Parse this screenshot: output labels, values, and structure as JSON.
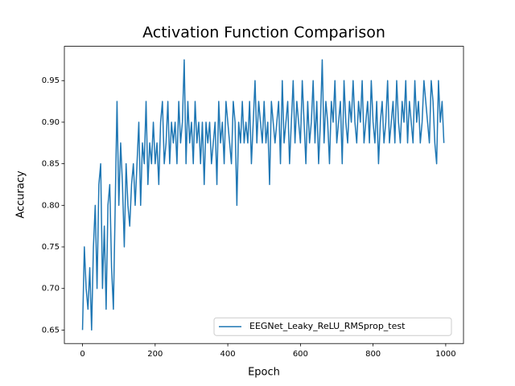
{
  "chart_data": {
    "type": "line",
    "title": "Activation Function Comparison",
    "xlabel": "Epoch",
    "ylabel": "Accuracy",
    "legend": "lower right",
    "xlim": [
      -49.95,
      1048.95
    ],
    "ylim": [
      0.63375,
      0.99125
    ],
    "xticks": [
      0,
      200,
      400,
      600,
      800,
      1000
    ],
    "yticks": [
      0.65,
      {
        "value": 0.7,
        "label": "0.70"
      },
      0.75,
      {
        "value": 0.8,
        "label": "0.80"
      },
      0.85,
      {
        "value": 0.9,
        "label": "0.90"
      },
      0.95
    ],
    "x": [
      0,
      5,
      10,
      15,
      20,
      25,
      30,
      35,
      40,
      45,
      50,
      55,
      60,
      65,
      70,
      75,
      80,
      85,
      90,
      95,
      100,
      105,
      110,
      115,
      120,
      125,
      130,
      135,
      140,
      145,
      150,
      155,
      160,
      165,
      170,
      175,
      180,
      185,
      190,
      195,
      200,
      205,
      210,
      215,
      220,
      225,
      230,
      235,
      240,
      245,
      250,
      255,
      260,
      265,
      270,
      275,
      280,
      285,
      290,
      295,
      300,
      305,
      310,
      315,
      320,
      325,
      330,
      335,
      340,
      345,
      350,
      355,
      360,
      365,
      370,
      375,
      380,
      385,
      390,
      395,
      400,
      405,
      410,
      415,
      420,
      425,
      430,
      435,
      440,
      445,
      450,
      455,
      460,
      465,
      470,
      475,
      480,
      485,
      490,
      495,
      500,
      505,
      510,
      515,
      520,
      525,
      530,
      535,
      540,
      545,
      550,
      555,
      560,
      565,
      570,
      575,
      580,
      585,
      590,
      595,
      600,
      605,
      610,
      615,
      620,
      625,
      630,
      635,
      640,
      645,
      650,
      655,
      660,
      665,
      670,
      675,
      680,
      685,
      690,
      695,
      700,
      705,
      710,
      715,
      720,
      725,
      730,
      735,
      740,
      745,
      750,
      755,
      760,
      765,
      770,
      775,
      780,
      785,
      790,
      795,
      800,
      805,
      810,
      815,
      820,
      825,
      830,
      835,
      840,
      845,
      850,
      855,
      860,
      865,
      870,
      875,
      880,
      885,
      890,
      895,
      900,
      905,
      910,
      915,
      920,
      925,
      930,
      935,
      940,
      945,
      950,
      955,
      960,
      965,
      970,
      975,
      980,
      985,
      990,
      995
    ],
    "series": [
      {
        "name": "EEGNet_Leaky_ReLU_RMSprop_test",
        "color": "#1f77b4",
        "values": [
          0.65,
          0.75,
          0.7,
          0.675,
          0.725,
          0.65,
          0.75,
          0.8,
          0.7,
          0.825,
          0.85,
          0.7,
          0.775,
          0.675,
          0.8,
          0.825,
          0.725,
          0.675,
          0.8,
          0.925,
          0.8,
          0.875,
          0.825,
          0.75,
          0.85,
          0.8,
          0.775,
          0.825,
          0.85,
          0.8,
          0.85,
          0.9,
          0.8,
          0.875,
          0.85,
          0.925,
          0.825,
          0.875,
          0.85,
          0.9,
          0.85,
          0.875,
          0.825,
          0.9,
          0.925,
          0.85,
          0.875,
          0.925,
          0.85,
          0.9,
          0.875,
          0.9,
          0.85,
          0.925,
          0.875,
          0.9,
          0.975,
          0.85,
          0.925,
          0.875,
          0.9,
          0.85,
          0.925,
          0.875,
          0.9,
          0.85,
          0.9,
          0.825,
          0.9,
          0.875,
          0.9,
          0.85,
          0.875,
          0.9,
          0.825,
          0.925,
          0.875,
          0.9,
          0.85,
          0.925,
          0.9,
          0.875,
          0.85,
          0.925,
          0.9,
          0.8,
          0.9,
          0.875,
          0.925,
          0.875,
          0.9,
          0.875,
          0.925,
          0.85,
          0.9,
          0.95,
          0.875,
          0.925,
          0.9,
          0.875,
          0.925,
          0.875,
          0.9,
          0.825,
          0.925,
          0.9,
          0.875,
          0.9,
          0.925,
          0.85,
          0.95,
          0.875,
          0.9,
          0.925,
          0.85,
          0.9,
          0.95,
          0.875,
          0.925,
          0.9,
          0.875,
          0.95,
          0.9,
          0.85,
          0.925,
          0.875,
          0.9,
          0.95,
          0.875,
          0.925,
          0.85,
          0.9,
          0.975,
          0.875,
          0.925,
          0.9,
          0.85,
          0.925,
          0.9,
          0.95,
          0.875,
          0.9,
          0.925,
          0.85,
          0.95,
          0.9,
          0.875,
          0.925,
          0.9,
          0.95,
          0.9,
          0.875,
          0.925,
          0.9,
          0.95,
          0.875,
          0.9,
          0.925,
          0.875,
          0.95,
          0.9,
          0.875,
          0.925,
          0.85,
          0.9,
          0.925,
          0.875,
          0.9,
          0.95,
          0.875,
          0.9,
          0.925,
          0.875,
          0.95,
          0.9,
          0.875,
          0.925,
          0.9,
          0.95,
          0.875,
          0.925,
          0.9,
          0.875,
          0.95,
          0.9,
          0.925,
          0.875,
          0.9,
          0.95,
          0.925,
          0.9,
          0.875,
          0.95,
          0.925,
          0.875,
          0.85,
          0.95,
          0.9,
          0.925,
          0.875
        ]
      }
    ]
  }
}
